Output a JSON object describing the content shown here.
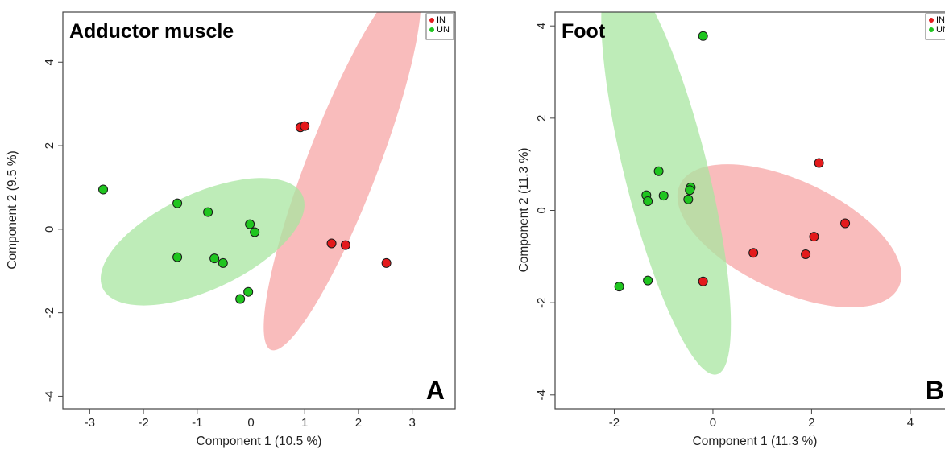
{
  "chart_data": [
    {
      "type": "scatter",
      "title": "Adductor muscle",
      "panel_label": "A",
      "xlabel": "Component 1 (10.5 %)",
      "ylabel": "Component 2 (9.5 %)",
      "xlim": [
        -3.5,
        3.8
      ],
      "ylim": [
        -4.3,
        5.2
      ],
      "xticks": [
        -3,
        -2,
        -1,
        0,
        1,
        2,
        3
      ],
      "yticks": [
        -4,
        -2,
        0,
        2,
        4
      ],
      "grid": false,
      "legend_position": "top-right",
      "series": [
        {
          "name": "IN",
          "color": "#e31a1c",
          "ellipse_color": "#f7a6a6",
          "points": [
            [
              0.92,
              2.44
            ],
            [
              1.0,
              2.47
            ],
            [
              1.5,
              -0.34
            ],
            [
              1.76,
              -0.38
            ],
            [
              2.52,
              -0.81
            ]
          ]
        },
        {
          "name": "UN",
          "color": "#1fc51f",
          "ellipse_color": "#a8e6a0",
          "points": [
            [
              -2.75,
              0.95
            ],
            [
              -1.37,
              0.62
            ],
            [
              -0.8,
              0.41
            ],
            [
              -0.02,
              0.12
            ],
            [
              0.07,
              -0.07
            ],
            [
              -1.37,
              -0.67
            ],
            [
              -0.68,
              -0.7
            ],
            [
              -0.52,
              -0.81
            ],
            [
              -0.05,
              -1.5
            ],
            [
              -0.2,
              -1.67
            ]
          ]
        }
      ]
    },
    {
      "type": "scatter",
      "title": "Foot",
      "panel_label": "B",
      "xlabel": "Component 1 (11.3 %)",
      "ylabel": "Component 2 (11.3 %)",
      "xlim": [
        -3.2,
        4.9
      ],
      "ylim": [
        -4.3,
        4.3
      ],
      "xticks": [
        -2,
        0,
        2,
        4
      ],
      "yticks": [
        -4,
        -2,
        0,
        2,
        4
      ],
      "grid": false,
      "legend_position": "top-right",
      "series": [
        {
          "name": "IN",
          "color": "#e31a1c",
          "ellipse_color": "#f7a6a6",
          "points": [
            [
              2.15,
              1.03
            ],
            [
              2.68,
              -0.28
            ],
            [
              2.05,
              -0.57
            ],
            [
              1.88,
              -0.95
            ],
            [
              0.82,
              -0.92
            ],
            [
              -0.2,
              -1.54
            ]
          ]
        },
        {
          "name": "UN",
          "color": "#1fc51f",
          "ellipse_color": "#a8e6a0",
          "points": [
            [
              -0.2,
              3.78
            ],
            [
              -1.1,
              0.85
            ],
            [
              -1.35,
              0.33
            ],
            [
              -1.32,
              0.2
            ],
            [
              -1.0,
              0.32
            ],
            [
              -0.45,
              0.5
            ],
            [
              -0.47,
              0.44
            ],
            [
              -0.5,
              0.24
            ],
            [
              -1.32,
              -1.52
            ],
            [
              -1.9,
              -1.65
            ]
          ]
        }
      ]
    }
  ]
}
